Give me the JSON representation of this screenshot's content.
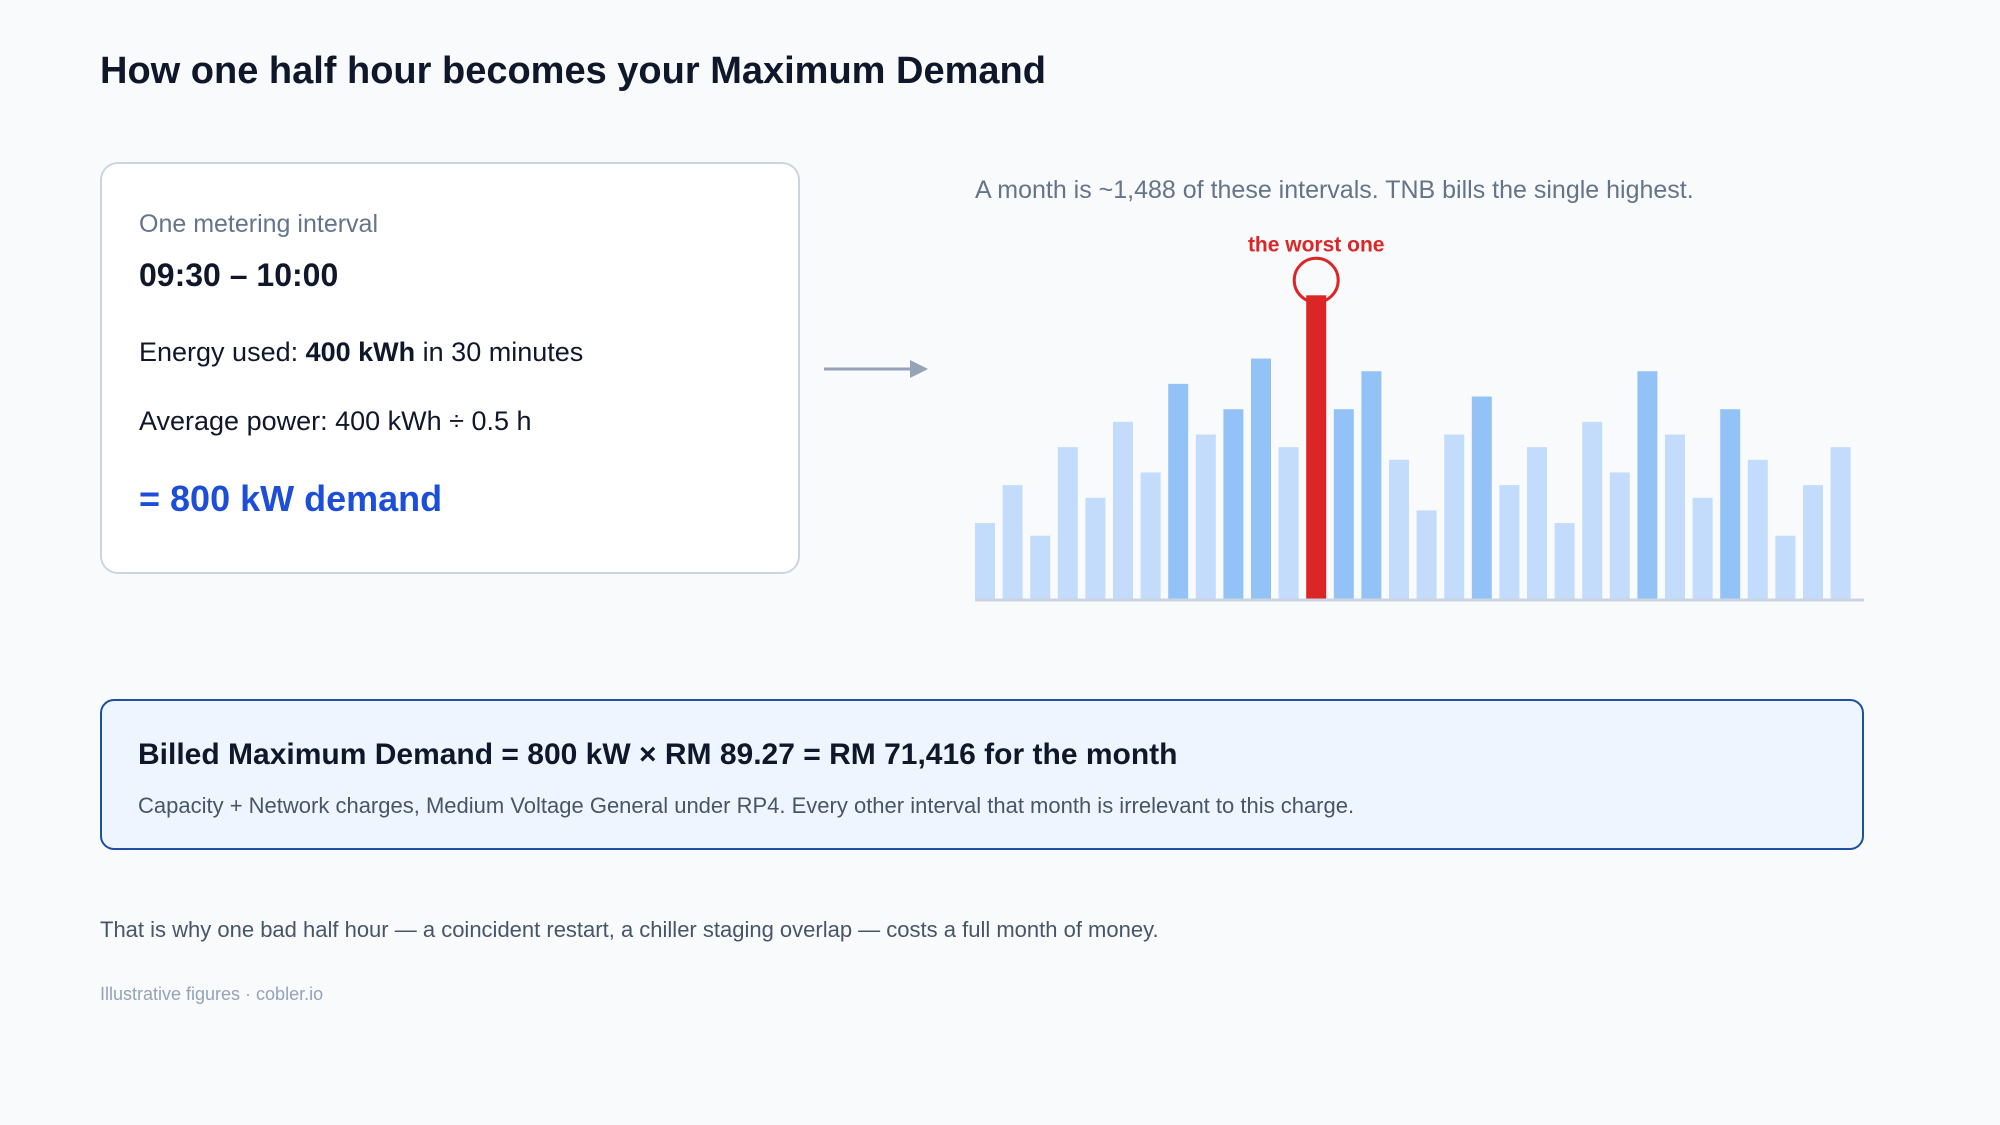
{
  "title": "How one half hour becomes your Maximum Demand",
  "interval_card": {
    "label": "One metering interval",
    "time": "09:30 – 10:00",
    "energy_prefix": "Energy used: ",
    "energy_value": "400 kWh",
    "energy_suffix": " in 30 minutes",
    "power_line": "Average power: 400 kWh ÷ 0.5 h",
    "demand_line": "= 800 kW demand"
  },
  "chart_data": {
    "type": "bar",
    "caption": "A month is ~1,488 of these intervals. TNB bills the single highest.",
    "annotation": "the worst one",
    "highlight_index": 12,
    "values": [
      30,
      45,
      25,
      60,
      40,
      70,
      50,
      85,
      65,
      75,
      95,
      60,
      120,
      75,
      90,
      55,
      35,
      65,
      80,
      45,
      60,
      30,
      70,
      50,
      90,
      65,
      40,
      75,
      55,
      25,
      45,
      60
    ],
    "shades": [
      "l",
      "l",
      "l",
      "l",
      "l",
      "l",
      "l",
      "m",
      "l",
      "m",
      "m",
      "l",
      "h",
      "m",
      "m",
      "l",
      "l",
      "l",
      "m",
      "l",
      "l",
      "l",
      "l",
      "l",
      "m",
      "l",
      "l",
      "m",
      "l",
      "l",
      "l",
      "l"
    ],
    "ylim": [
      0,
      130
    ],
    "colors": {
      "light": "#c3dcfb",
      "medium": "#93c3f6",
      "highlight": "#dc2626",
      "axis": "#cbd5e1"
    }
  },
  "billed": {
    "headline": "Billed Maximum Demand = 800 kW × RM 89.27 = RM 71,416 for the month",
    "sub": "Capacity + Network charges, Medium Voltage General under RP4. Every other interval that month is irrelevant to this charge."
  },
  "footnote": "That is why one bad half hour — a coincident restart, a chiller staging overlap — costs a full month of money.",
  "credit": "Illustrative figures · cobler.io"
}
